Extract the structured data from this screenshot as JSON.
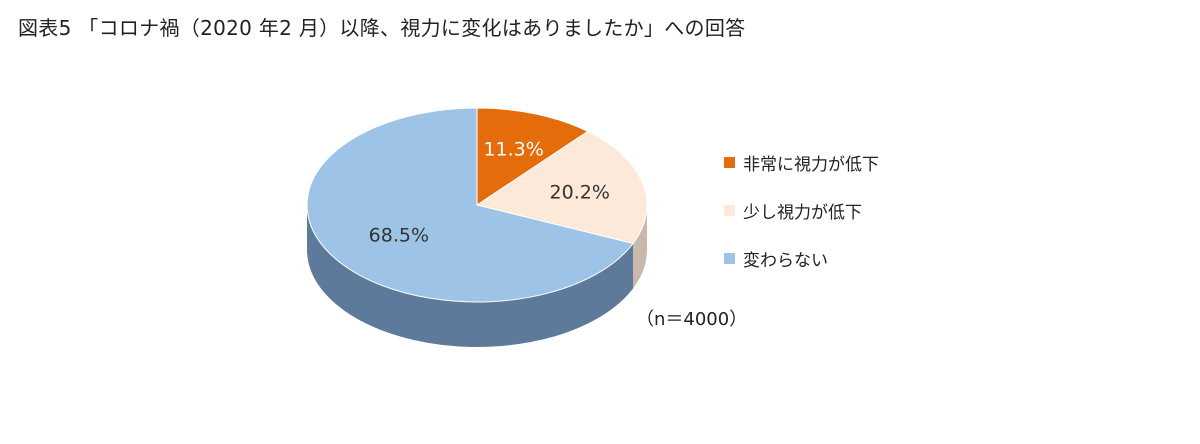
{
  "title": "図表5 「コロナ禍（2020 年2 月）以降、視力に変化はありましたか」への回答",
  "sample_note": "（n＝4000）",
  "chart_data": {
    "type": "pie",
    "style": "3d",
    "categories": [
      "非常に視力が低下",
      "少し視力が低下",
      "変わらない"
    ],
    "values": [
      11.3,
      20.2,
      68.5
    ],
    "labels": [
      "11.3%",
      "20.2%",
      "68.5%"
    ],
    "colors": [
      "#e46c0a",
      "#fde9d9",
      "#9dc3e6"
    ],
    "side_colors": [
      "#9c4a06",
      "#c9b9ac",
      "#5d7a9a"
    ],
    "label_colors": [
      "#ffffff",
      "#333333",
      "#333333"
    ],
    "legend_position": "right",
    "start_angle_deg": 0,
    "direction": "clockwise"
  }
}
